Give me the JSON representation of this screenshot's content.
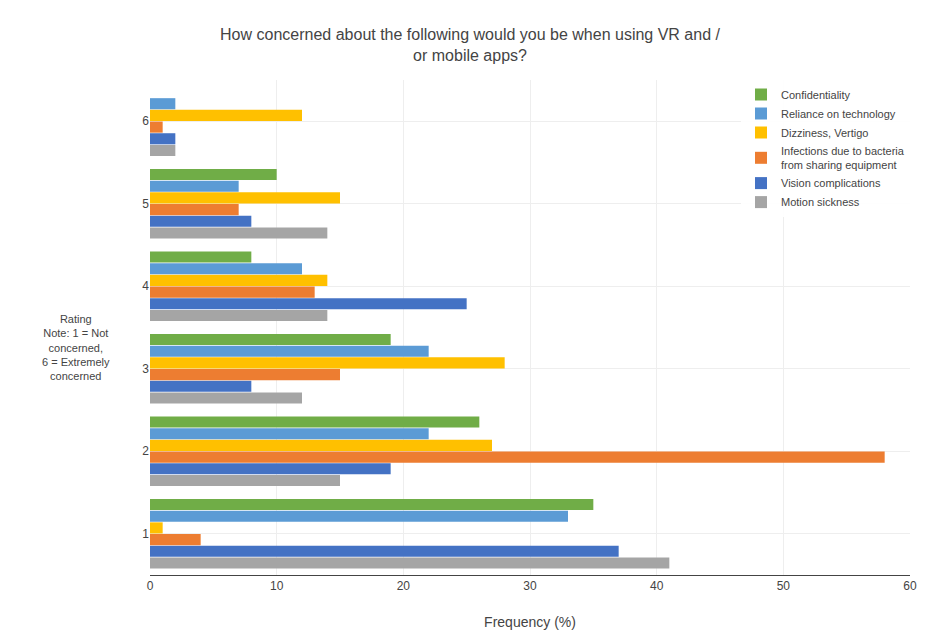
{
  "chart_data": {
    "type": "bar",
    "orientation": "horizontal",
    "title": "How concerned about the following would you be when using VR and /\nor mobile apps?",
    "x_label": "Frequency (%)",
    "categories": [
      "1",
      "2",
      "3",
      "4",
      "5",
      "6"
    ],
    "series": [
      {
        "name": "Confidentiality",
        "color": "#70ad47",
        "values": [
          35,
          26,
          19,
          8,
          10,
          0
        ]
      },
      {
        "name": "Reliance on technology",
        "color": "#5b9bd5",
        "values": [
          33,
          22,
          22,
          12,
          7,
          2
        ]
      },
      {
        "name": "Dizziness, Vertigo",
        "color": "#ffc000",
        "values": [
          1,
          27,
          28,
          14,
          15,
          12
        ]
      },
      {
        "name": "Infections due to bacteria\nfrom sharing equipment",
        "color": "#ed7d31",
        "values": [
          4,
          58,
          15,
          13,
          7,
          1
        ]
      },
      {
        "name": "Vision complications",
        "color": "#4472c4",
        "values": [
          37,
          19,
          8,
          25,
          8,
          2
        ]
      },
      {
        "name": "Motion sickness",
        "color": "#a5a5a5",
        "values": [
          41,
          15,
          12,
          14,
          14,
          2
        ]
      }
    ],
    "xlim": [
      0,
      60
    ],
    "xticks": [
      0,
      10,
      20,
      30,
      40,
      50,
      60
    ],
    "annotations": [
      "Rating\nNote: 1 = Not\nconcerned,\n6 = Extremely\nconcerned"
    ],
    "grid": true,
    "legend": "upper right"
  }
}
